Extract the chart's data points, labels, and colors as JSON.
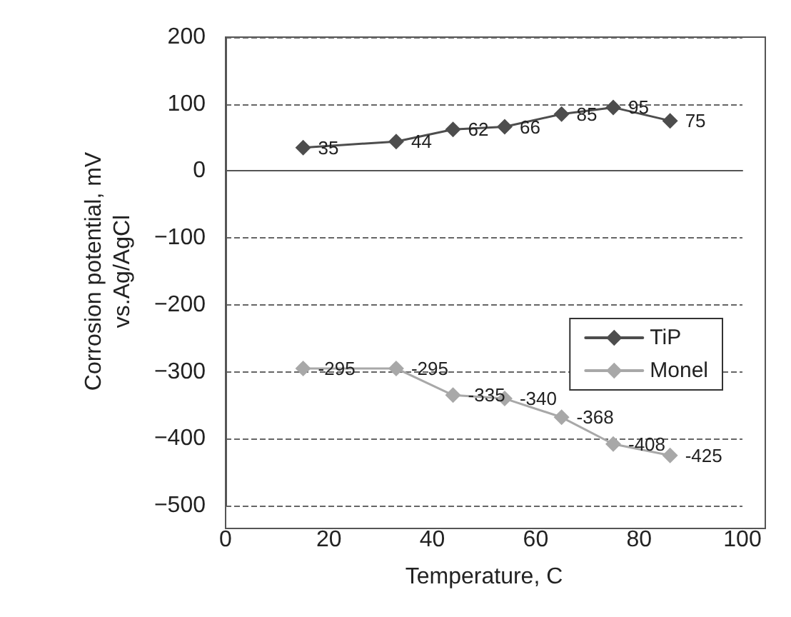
{
  "chart_data": {
    "type": "line",
    "xlabel": "Temperature, C",
    "ylabel": "Corrosion potential, mV\nvs.Ag/AgCl",
    "x": [
      15,
      33,
      44,
      54,
      65,
      75,
      86
    ],
    "series": [
      {
        "name": "TiP",
        "color": "#4d4d4d",
        "values": [
          35,
          44,
          62,
          66,
          85,
          95,
          75
        ]
      },
      {
        "name": "Monel",
        "color": "#a8a8a8",
        "values": [
          -295,
          -295,
          -335,
          -340,
          -368,
          -408,
          -425
        ]
      }
    ],
    "xlim": [
      0,
      100
    ],
    "xticks": [
      0,
      20,
      40,
      60,
      80,
      100
    ],
    "ylim": [
      -500,
      200
    ],
    "yticks": [
      -500,
      -400,
      -300,
      -200,
      -100,
      0,
      100,
      200
    ],
    "grid": "y",
    "legend": "right",
    "marker": "diamond",
    "line_style": "solid",
    "data_labels": true
  }
}
